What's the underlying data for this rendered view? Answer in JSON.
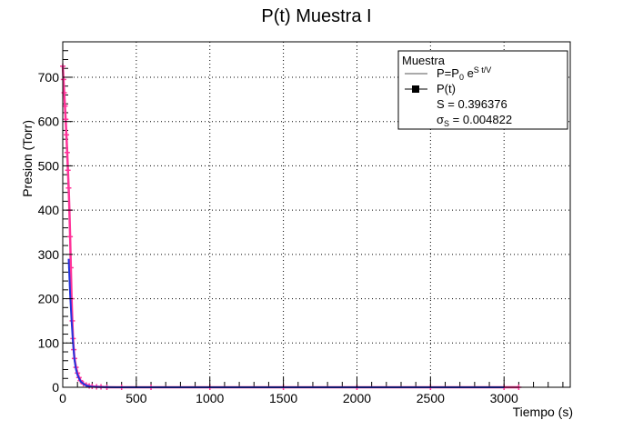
{
  "chart_data": {
    "type": "line",
    "title": "P(t) Muestra I",
    "xlabel": "Tiempo (s)",
    "ylabel": "Presion (Torr)",
    "xlim": [
      0,
      3450
    ],
    "ylim": [
      0,
      780
    ],
    "xticks": [
      0,
      500,
      1000,
      1500,
      2000,
      2500,
      3000
    ],
    "yticks": [
      0,
      100,
      200,
      300,
      400,
      500,
      600,
      700
    ],
    "grid": true,
    "legend": {
      "title": "Muestra",
      "position": "top-right",
      "fit_label_parts": [
        "P=P",
        "0",
        " e",
        "S t/V"
      ],
      "data_label": "P(t)",
      "s_text": "S = 0.396376",
      "sigma_parts": [
        "σ",
        "S",
        " = 0.004822"
      ]
    },
    "series": [
      {
        "name": "P(t)",
        "kind": "data",
        "color": "#ff3399",
        "x": [
          0,
          5,
          10,
          15,
          20,
          25,
          30,
          35,
          40,
          45,
          50,
          55,
          60,
          65,
          70,
          75,
          80,
          90,
          100,
          110,
          120,
          140,
          160,
          180,
          200,
          230,
          260,
          300,
          400,
          600,
          1000,
          1500,
          2000,
          2500,
          3000,
          3100
        ],
        "y": [
          725,
          695,
          665,
          635,
          605,
          570,
          530,
          490,
          450,
          400,
          340,
          270,
          200,
          150,
          110,
          85,
          65,
          45,
          32,
          22,
          15,
          8,
          5,
          3,
          2,
          1,
          1,
          0,
          0,
          0,
          0,
          0,
          0,
          0,
          0,
          0
        ]
      },
      {
        "name": "P=P0 e^(S t/V)",
        "kind": "fit",
        "color": "#2233dd",
        "x": [
          40,
          50,
          60,
          70,
          80,
          90,
          100,
          120,
          140,
          160,
          180,
          200,
          250,
          300,
          400,
          600,
          1000,
          2000,
          3000
        ],
        "y": [
          290,
          210,
          150,
          100,
          62,
          40,
          28,
          14,
          8,
          4,
          2,
          1,
          0.5,
          0.2,
          0,
          0,
          0,
          0,
          0
        ]
      }
    ]
  }
}
